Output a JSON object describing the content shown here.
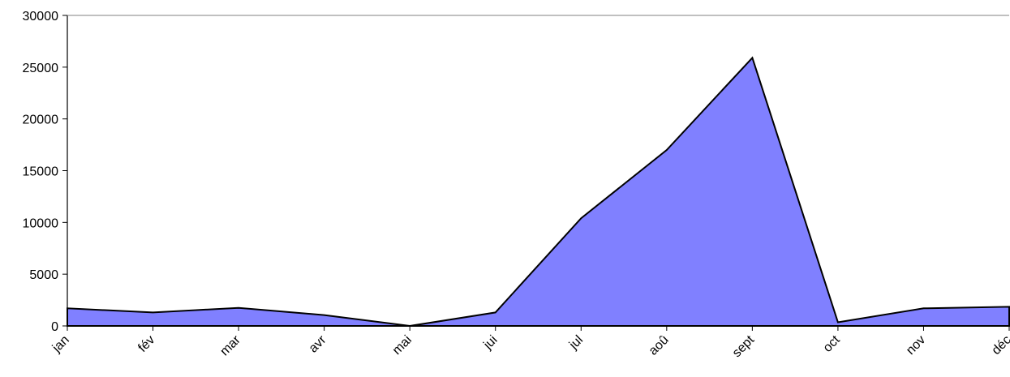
{
  "chart_data": {
    "type": "area",
    "title": "",
    "xlabel": "",
    "ylabel": "",
    "categories": [
      "jan",
      "fév",
      "mar",
      "avr",
      "mai",
      "jui",
      "jul",
      "aoû",
      "sept",
      "oct",
      "nov",
      "déc"
    ],
    "values": [
      1700,
      1300,
      1750,
      1050,
      0,
      1300,
      10400,
      17000,
      25900,
      350,
      1700,
      1850
    ],
    "ylim": [
      0,
      30000
    ],
    "yticks": [
      0,
      5000,
      10000,
      15000,
      20000,
      25000,
      30000
    ],
    "grid": false,
    "legend": "none",
    "fill_color": "#8080ff",
    "line_color": "#000000"
  }
}
